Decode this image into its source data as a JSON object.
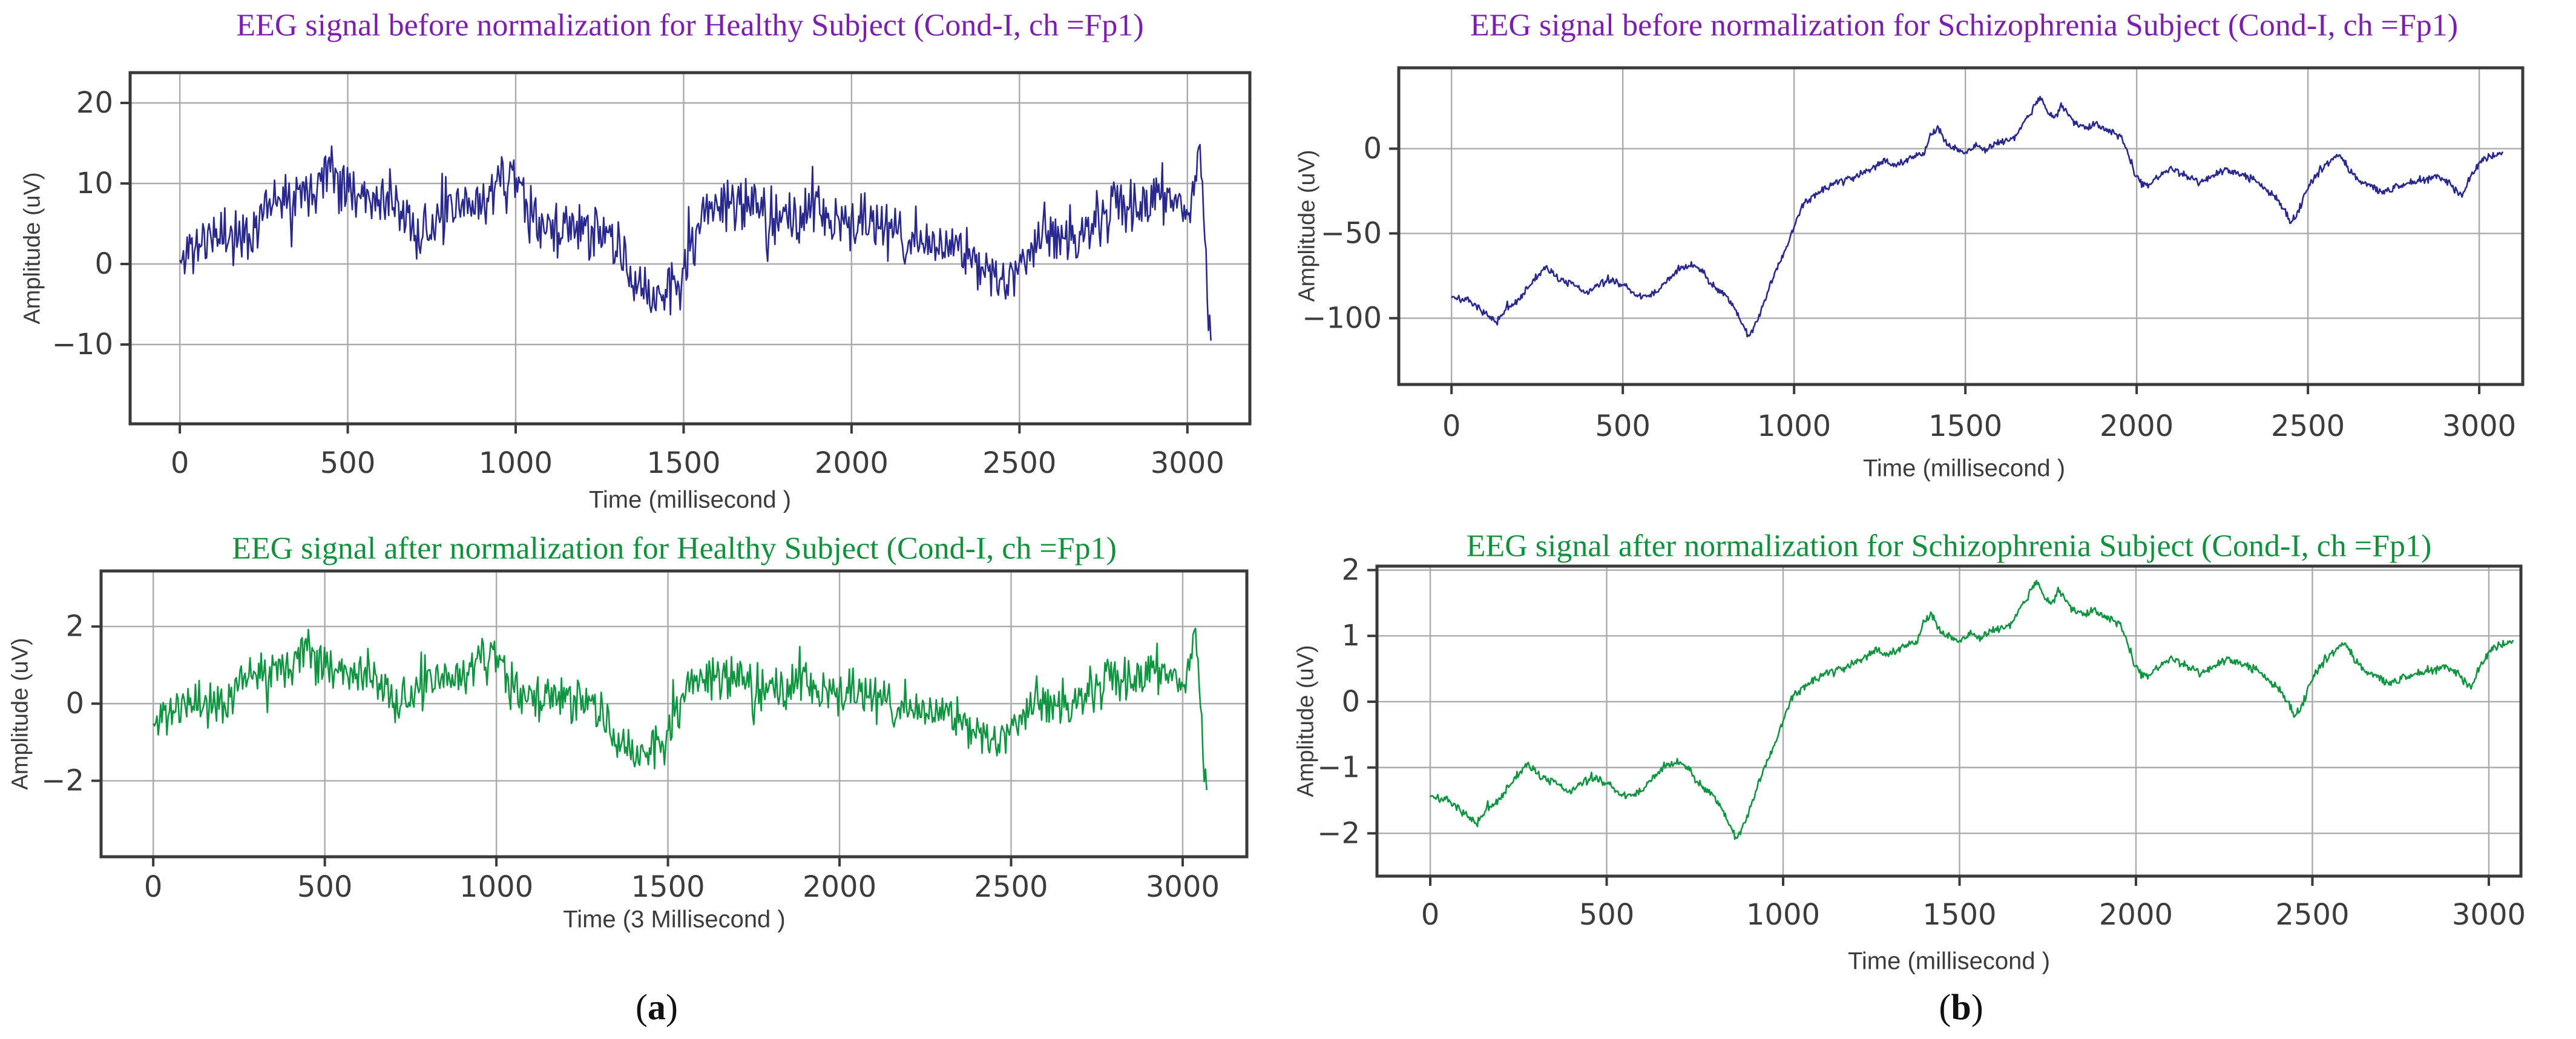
{
  "figure": {
    "background": "#ffffff",
    "captions": [
      {
        "open": "(",
        "letter": "a",
        "close": ")"
      },
      {
        "open": "(",
        "letter": "b",
        "close": ")"
      }
    ]
  },
  "colors": {
    "title_purple": "#7d1fae",
    "title_green": "#12913d",
    "line_navy": "#28288e",
    "line_green": "#0f9440",
    "grid": "#ababab",
    "border": "#3a3a3a",
    "tick_text": "#3c3c3c"
  },
  "chart_data": [
    {
      "type": "line",
      "title": "EEG signal before normalization for Healthy Subject (Cond-I, ch =Fp1)",
      "title_color": "#7d1fae",
      "line_color": "#28288e",
      "xlabel": "Time (millisecond )",
      "ylabel": "Amplitude (uV)",
      "xticks": [
        0,
        500,
        1000,
        1500,
        2000,
        2500,
        3000
      ],
      "yticks": [
        20,
        10,
        0,
        -10
      ],
      "xlim": [
        -148,
        3186
      ],
      "ylim": [
        -19.85,
        23.76
      ],
      "grid": true,
      "x_max": 3070,
      "n_points": 850,
      "noise_amp": 5,
      "noise_seed": 11,
      "spike_prob": 0.035,
      "spike_gain": 2.1,
      "trend": [
        [
          0,
          0
        ],
        [
          30,
          2
        ],
        [
          80,
          3
        ],
        [
          150,
          4
        ],
        [
          200,
          3
        ],
        [
          250,
          7
        ],
        [
          300,
          9
        ],
        [
          350,
          9
        ],
        [
          400,
          10
        ],
        [
          450,
          12
        ],
        [
          500,
          10
        ],
        [
          550,
          9
        ],
        [
          600,
          8
        ],
        [
          650,
          7
        ],
        [
          700,
          4
        ],
        [
          750,
          4
        ],
        [
          800,
          6
        ],
        [
          850,
          7
        ],
        [
          900,
          8
        ],
        [
          950,
          10
        ],
        [
          1000,
          11
        ],
        [
          1050,
          5
        ],
        [
          1100,
          4
        ],
        [
          1150,
          5
        ],
        [
          1200,
          4
        ],
        [
          1250,
          4
        ],
        [
          1300,
          2
        ],
        [
          1350,
          -2
        ],
        [
          1400,
          -4
        ],
        [
          1450,
          -3
        ],
        [
          1500,
          -2
        ],
        [
          1550,
          6
        ],
        [
          1600,
          8
        ],
        [
          1650,
          7
        ],
        [
          1700,
          7
        ],
        [
          1750,
          6
        ],
        [
          1800,
          6
        ],
        [
          1850,
          5
        ],
        [
          1900,
          7
        ],
        [
          1950,
          5
        ],
        [
          2000,
          5
        ],
        [
          2050,
          6
        ],
        [
          2100,
          4
        ],
        [
          2150,
          3
        ],
        [
          2200,
          3
        ],
        [
          2250,
          2
        ],
        [
          2300,
          2
        ],
        [
          2350,
          1
        ],
        [
          2400,
          -1
        ],
        [
          2450,
          -2
        ],
        [
          2500,
          0
        ],
        [
          2550,
          3
        ],
        [
          2600,
          4
        ],
        [
          2650,
          3
        ],
        [
          2700,
          4
        ],
        [
          2750,
          6
        ],
        [
          2800,
          7
        ],
        [
          2850,
          7
        ],
        [
          2900,
          8
        ],
        [
          2950,
          8
        ],
        [
          3000,
          7
        ],
        [
          3020,
          10
        ],
        [
          3040,
          15
        ],
        [
          3055,
          0
        ],
        [
          3070,
          -12
        ]
      ]
    },
    {
      "type": "line",
      "title": "EEG signal before normalization for Schizophrenia Subject (Cond-I, ch =Fp1)",
      "title_color": "#7d1fae",
      "line_color": "#28288e",
      "xlabel": "Time (millisecond )",
      "ylabel": "Amplitude (uV)",
      "xticks": [
        0,
        500,
        1000,
        1500,
        2000,
        2500,
        3000
      ],
      "yticks": [
        0,
        -50,
        -100
      ],
      "xlim": [
        -154,
        3127
      ],
      "ylim": [
        -139.1,
        47.7
      ],
      "grid": true,
      "x_max": 3070,
      "n_points": 1150,
      "noise_amp": 3.2,
      "noise_seed": 7,
      "spike_prob": 0.012,
      "spike_gain": 1.7,
      "trend": [
        [
          0,
          -87
        ],
        [
          50,
          -90
        ],
        [
          100,
          -97
        ],
        [
          130,
          -103
        ],
        [
          160,
          -95
        ],
        [
          200,
          -88
        ],
        [
          250,
          -75
        ],
        [
          280,
          -70
        ],
        [
          320,
          -78
        ],
        [
          350,
          -80
        ],
        [
          400,
          -85
        ],
        [
          430,
          -80
        ],
        [
          470,
          -78
        ],
        [
          500,
          -80
        ],
        [
          530,
          -85
        ],
        [
          570,
          -88
        ],
        [
          600,
          -84
        ],
        [
          630,
          -78
        ],
        [
          660,
          -72
        ],
        [
          700,
          -68
        ],
        [
          730,
          -72
        ],
        [
          760,
          -80
        ],
        [
          800,
          -86
        ],
        [
          830,
          -95
        ],
        [
          850,
          -105
        ],
        [
          870,
          -110
        ],
        [
          900,
          -98
        ],
        [
          930,
          -80
        ],
        [
          950,
          -70
        ],
        [
          980,
          -58
        ],
        [
          1000,
          -45
        ],
        [
          1030,
          -32
        ],
        [
          1060,
          -27
        ],
        [
          1100,
          -22
        ],
        [
          1140,
          -19
        ],
        [
          1180,
          -16
        ],
        [
          1220,
          -12
        ],
        [
          1260,
          -7
        ],
        [
          1300,
          -10
        ],
        [
          1340,
          -6
        ],
        [
          1380,
          -2
        ],
        [
          1400,
          8
        ],
        [
          1420,
          12
        ],
        [
          1440,
          4
        ],
        [
          1470,
          0
        ],
        [
          1500,
          -2
        ],
        [
          1530,
          2
        ],
        [
          1560,
          0
        ],
        [
          1600,
          4
        ],
        [
          1640,
          6
        ],
        [
          1680,
          18
        ],
        [
          1700,
          25
        ],
        [
          1720,
          30
        ],
        [
          1740,
          22
        ],
        [
          1760,
          18
        ],
        [
          1780,
          25
        ],
        [
          1800,
          20
        ],
        [
          1820,
          15
        ],
        [
          1850,
          12
        ],
        [
          1880,
          15
        ],
        [
          1900,
          12
        ],
        [
          1930,
          10
        ],
        [
          1950,
          8
        ],
        [
          1970,
          0
        ],
        [
          2000,
          -18
        ],
        [
          2030,
          -22
        ],
        [
          2060,
          -16
        ],
        [
          2100,
          -12
        ],
        [
          2140,
          -15
        ],
        [
          2180,
          -20
        ],
        [
          2220,
          -16
        ],
        [
          2260,
          -13
        ],
        [
          2300,
          -15
        ],
        [
          2340,
          -18
        ],
        [
          2380,
          -24
        ],
        [
          2420,
          -32
        ],
        [
          2450,
          -44
        ],
        [
          2470,
          -38
        ],
        [
          2500,
          -22
        ],
        [
          2530,
          -14
        ],
        [
          2560,
          -8
        ],
        [
          2590,
          -4
        ],
        [
          2620,
          -12
        ],
        [
          2650,
          -18
        ],
        [
          2680,
          -22
        ],
        [
          2720,
          -26
        ],
        [
          2760,
          -22
        ],
        [
          2800,
          -20
        ],
        [
          2840,
          -18
        ],
        [
          2880,
          -16
        ],
        [
          2920,
          -22
        ],
        [
          2950,
          -28
        ],
        [
          2980,
          -14
        ],
        [
          3010,
          -6
        ],
        [
          3040,
          -4
        ],
        [
          3070,
          -2
        ]
      ]
    },
    {
      "type": "line",
      "title": "EEG signal after normalization for Healthy Subject (Cond-I, ch =Fp1)",
      "title_color": "#12913d",
      "line_color": "#0f9440",
      "xlabel": "Time (3 Millisecond )",
      "ylabel": "Amplitude (uV)",
      "xticks": [
        0,
        500,
        1000,
        1500,
        2000,
        2500,
        3000
      ],
      "yticks": [
        2,
        0,
        -2
      ],
      "xlim": [
        -152,
        3187
      ],
      "ylim": [
        -3.97,
        3.44
      ],
      "grid": true,
      "x_max": 3070,
      "n_points": 850,
      "noise_amp": 0.86,
      "noise_seed": 11,
      "spike_prob": 0.035,
      "spike_gain": 2.1,
      "trend": [
        [
          0,
          -0.6
        ],
        [
          30,
          -0.26
        ],
        [
          80,
          -0.09
        ],
        [
          150,
          0.09
        ],
        [
          200,
          -0.09
        ],
        [
          250,
          0.6
        ],
        [
          300,
          0.95
        ],
        [
          350,
          0.95
        ],
        [
          400,
          1.12
        ],
        [
          450,
          1.47
        ],
        [
          500,
          1.12
        ],
        [
          550,
          0.95
        ],
        [
          600,
          0.78
        ],
        [
          650,
          0.6
        ],
        [
          700,
          0.09
        ],
        [
          750,
          0.09
        ],
        [
          800,
          0.43
        ],
        [
          850,
          0.6
        ],
        [
          900,
          0.78
        ],
        [
          950,
          1.12
        ],
        [
          1000,
          1.29
        ],
        [
          1050,
          0.26
        ],
        [
          1100,
          0.09
        ],
        [
          1150,
          0.26
        ],
        [
          1200,
          0.09
        ],
        [
          1250,
          0.09
        ],
        [
          1300,
          -0.26
        ],
        [
          1350,
          -0.95
        ],
        [
          1400,
          -1.29
        ],
        [
          1450,
          -1.12
        ],
        [
          1500,
          -0.95
        ],
        [
          1550,
          0.43
        ],
        [
          1600,
          0.78
        ],
        [
          1650,
          0.6
        ],
        [
          1700,
          0.6
        ],
        [
          1750,
          0.43
        ],
        [
          1800,
          0.43
        ],
        [
          1850,
          0.26
        ],
        [
          1900,
          0.6
        ],
        [
          1950,
          0.26
        ],
        [
          2000,
          0.26
        ],
        [
          2050,
          0.43
        ],
        [
          2100,
          0.09
        ],
        [
          2150,
          -0.09
        ],
        [
          2200,
          -0.09
        ],
        [
          2250,
          -0.26
        ],
        [
          2300,
          -0.26
        ],
        [
          2350,
          -0.43
        ],
        [
          2400,
          -0.78
        ],
        [
          2450,
          -0.95
        ],
        [
          2500,
          -0.6
        ],
        [
          2550,
          -0.09
        ],
        [
          2600,
          0.09
        ],
        [
          2650,
          -0.09
        ],
        [
          2700,
          0.09
        ],
        [
          2750,
          0.43
        ],
        [
          2800,
          0.6
        ],
        [
          2850,
          0.6
        ],
        [
          2900,
          0.78
        ],
        [
          2950,
          0.78
        ],
        [
          3000,
          0.6
        ],
        [
          3020,
          1.12
        ],
        [
          3040,
          1.98
        ],
        [
          3055,
          -0.6
        ],
        [
          3070,
          -2.67
        ]
      ]
    },
    {
      "type": "line",
      "title": "EEG signal after normalization for Schizophrenia Subject (Cond-I, ch =Fp1)",
      "title_color": "#12913d",
      "line_color": "#0f9440",
      "xlabel": "Time (millisecond )",
      "ylabel": "Amplitude (uV)",
      "xticks": [
        0,
        500,
        1000,
        1500,
        2000,
        2500,
        3000
      ],
      "yticks": [
        2,
        1,
        0,
        -1,
        -2
      ],
      "xlim": [
        -151,
        3091
      ],
      "ylim": [
        -2.65,
        2.06
      ],
      "grid": true,
      "x_max": 3070,
      "n_points": 1150,
      "noise_amp": 0.092,
      "noise_seed": 7,
      "spike_prob": 0.012,
      "spike_gain": 1.7,
      "trend": [
        [
          0,
          -1.42
        ],
        [
          50,
          -1.51
        ],
        [
          100,
          -1.7
        ],
        [
          130,
          -1.87
        ],
        [
          160,
          -1.65
        ],
        [
          200,
          -1.45
        ],
        [
          250,
          -1.09
        ],
        [
          280,
          -0.95
        ],
        [
          320,
          -1.17
        ],
        [
          350,
          -1.23
        ],
        [
          400,
          -1.37
        ],
        [
          430,
          -1.23
        ],
        [
          470,
          -1.17
        ],
        [
          500,
          -1.23
        ],
        [
          530,
          -1.37
        ],
        [
          570,
          -1.45
        ],
        [
          600,
          -1.34
        ],
        [
          630,
          -1.17
        ],
        [
          660,
          -1.01
        ],
        [
          700,
          -0.9
        ],
        [
          730,
          -1.01
        ],
        [
          760,
          -1.23
        ],
        [
          800,
          -1.4
        ],
        [
          830,
          -1.65
        ],
        [
          850,
          -1.92
        ],
        [
          870,
          -2.06
        ],
        [
          900,
          -1.73
        ],
        [
          930,
          -1.23
        ],
        [
          950,
          -0.95
        ],
        [
          980,
          -0.62
        ],
        [
          1000,
          -0.26
        ],
        [
          1030,
          0.1
        ],
        [
          1060,
          0.24
        ],
        [
          1100,
          0.38
        ],
        [
          1140,
          0.46
        ],
        [
          1180,
          0.54
        ],
        [
          1220,
          0.65
        ],
        [
          1260,
          0.79
        ],
        [
          1300,
          0.71
        ],
        [
          1340,
          0.82
        ],
        [
          1380,
          0.93
        ],
        [
          1400,
          1.21
        ],
        [
          1420,
          1.32
        ],
        [
          1440,
          1.1
        ],
        [
          1470,
          0.99
        ],
        [
          1500,
          0.93
        ],
        [
          1530,
          1.04
        ],
        [
          1560,
          0.99
        ],
        [
          1600,
          1.1
        ],
        [
          1640,
          1.15
        ],
        [
          1680,
          1.48
        ],
        [
          1700,
          1.68
        ],
        [
          1720,
          1.82
        ],
        [
          1740,
          1.6
        ],
        [
          1760,
          1.48
        ],
        [
          1780,
          1.68
        ],
        [
          1800,
          1.54
        ],
        [
          1820,
          1.4
        ],
        [
          1850,
          1.32
        ],
        [
          1880,
          1.4
        ],
        [
          1900,
          1.32
        ],
        [
          1930,
          1.26
        ],
        [
          1950,
          1.21
        ],
        [
          1970,
          0.99
        ],
        [
          2000,
          0.49
        ],
        [
          2030,
          0.38
        ],
        [
          2060,
          0.54
        ],
        [
          2100,
          0.65
        ],
        [
          2140,
          0.57
        ],
        [
          2180,
          0.43
        ],
        [
          2220,
          0.54
        ],
        [
          2260,
          0.63
        ],
        [
          2300,
          0.57
        ],
        [
          2340,
          0.49
        ],
        [
          2380,
          0.32
        ],
        [
          2420,
          0.1
        ],
        [
          2450,
          -0.23
        ],
        [
          2470,
          -0.07
        ],
        [
          2500,
          0.38
        ],
        [
          2530,
          0.6
        ],
        [
          2560,
          0.76
        ],
        [
          2590,
          0.88
        ],
        [
          2620,
          0.65
        ],
        [
          2650,
          0.49
        ],
        [
          2680,
          0.38
        ],
        [
          2720,
          0.27
        ],
        [
          2760,
          0.38
        ],
        [
          2800,
          0.43
        ],
        [
          2840,
          0.49
        ],
        [
          2880,
          0.54
        ],
        [
          2920,
          0.38
        ],
        [
          2950,
          0.21
        ],
        [
          2980,
          0.6
        ],
        [
          3010,
          0.82
        ],
        [
          3040,
          0.88
        ],
        [
          3070,
          0.93
        ]
      ]
    }
  ]
}
